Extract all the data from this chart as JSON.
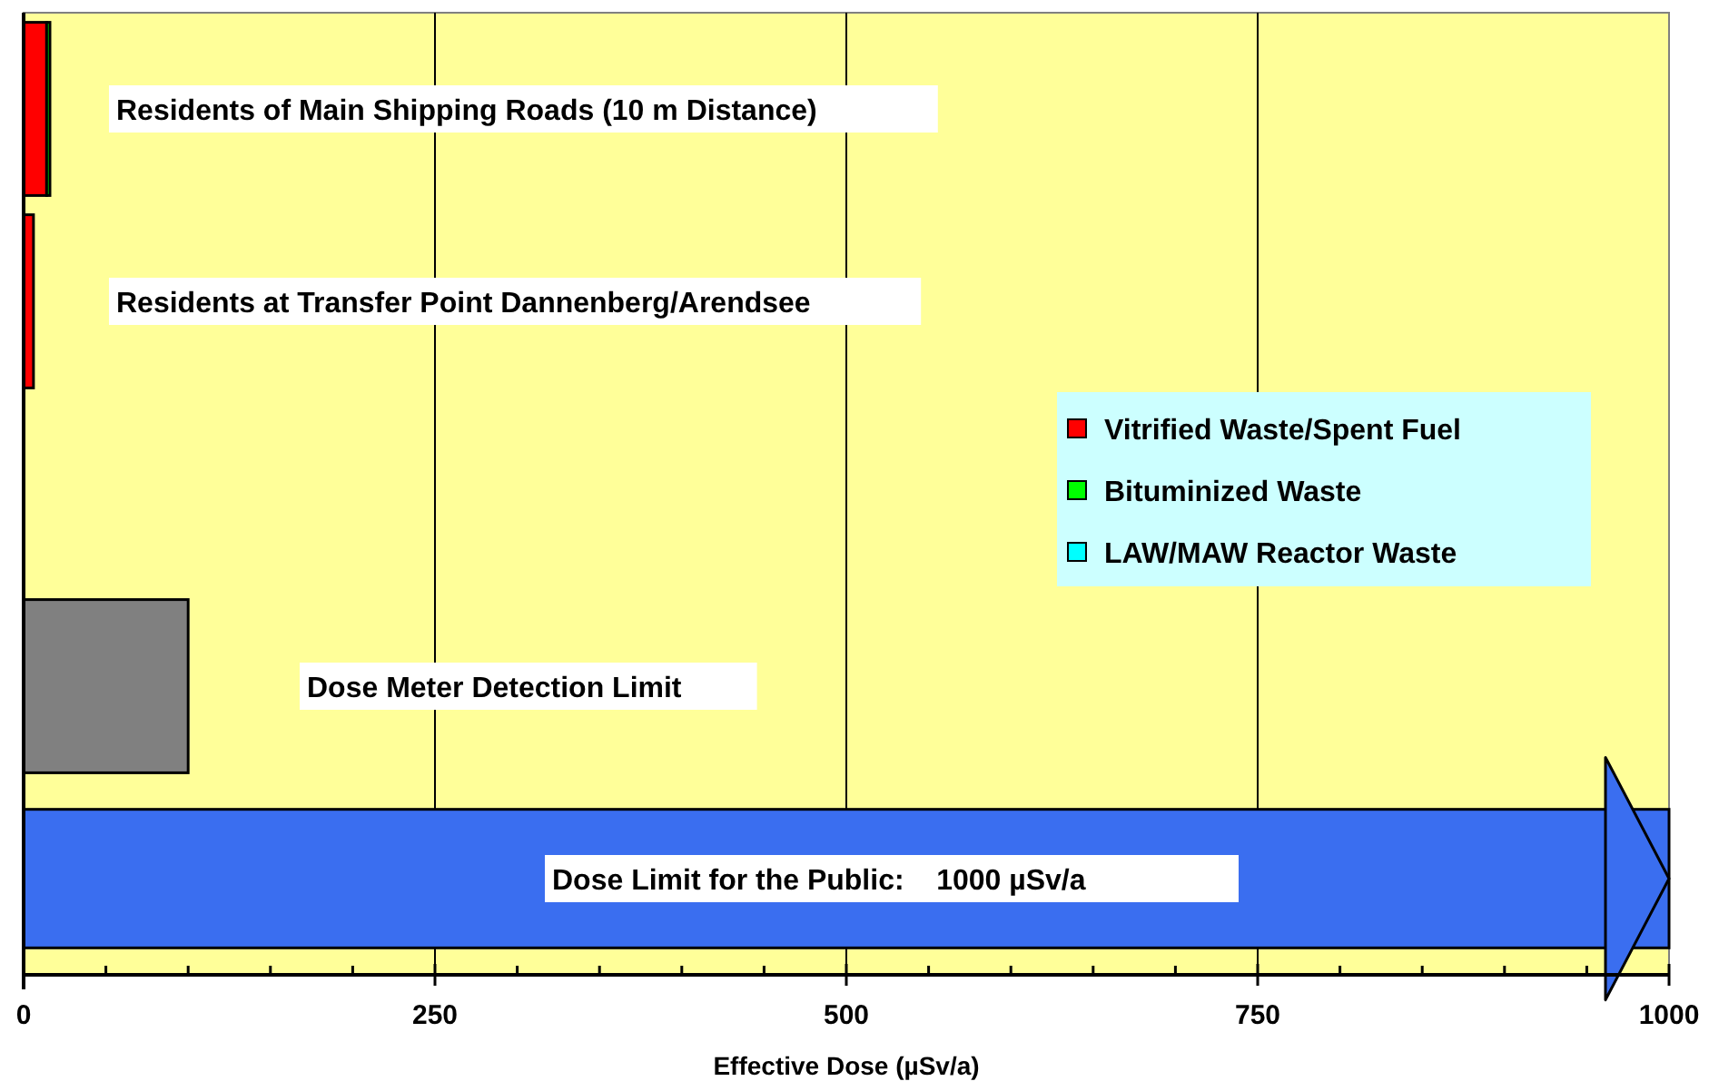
{
  "chart_data": {
    "type": "bar",
    "orientation": "horizontal",
    "stacked": true,
    "xlabel": "Effective Dose (µSv/a)",
    "categories": [
      "Residents of Main Shipping Roads (10 m Distance)",
      "Residents at Transfer Point Dannenberg/Arendsee",
      null,
      "Dose Meter Detection Limit",
      "Dose Limit for the Public:    1000 µSv/a"
    ],
    "series": [
      {
        "name": "Vitrified Waste/Spent Fuel",
        "color": "#ff0000",
        "values": [
          14,
          6,
          null,
          null,
          null
        ]
      },
      {
        "name": "Bituminized Waste",
        "color": "#00ff00",
        "values": [
          2,
          null,
          null,
          null,
          null
        ]
      },
      {
        "name": "LAW/MAW Reactor Waste",
        "color": "#00ffff",
        "values": [
          null,
          null,
          null,
          null,
          null
        ]
      },
      {
        "color": "#808080",
        "values": [
          null,
          null,
          null,
          100,
          null
        ]
      },
      {
        "color": "#3a6ef0",
        "values": [
          null,
          null,
          null,
          null,
          1000
        ]
      }
    ],
    "xlim": [
      0,
      1000
    ],
    "xticks": [
      0,
      {
        "value": 50,
        "label": null
      },
      {
        "value": 100,
        "label": null
      },
      {
        "value": 150,
        "label": null
      },
      {
        "value": 200,
        "label": null
      },
      250,
      {
        "value": 300,
        "label": null
      },
      {
        "value": 350,
        "label": null
      },
      {
        "value": 400,
        "label": null
      },
      {
        "value": 450,
        "label": null
      },
      500,
      {
        "value": 550,
        "label": null
      },
      {
        "value": 600,
        "label": null
      },
      {
        "value": 650,
        "label": null
      },
      {
        "value": 700,
        "label": null
      },
      750,
      {
        "value": 800,
        "label": null
      },
      {
        "value": 850,
        "label": null
      },
      {
        "value": 900,
        "label": null
      },
      {
        "value": 950,
        "label": null
      },
      1000
    ],
    "grid": "x",
    "legend": "right"
  }
}
